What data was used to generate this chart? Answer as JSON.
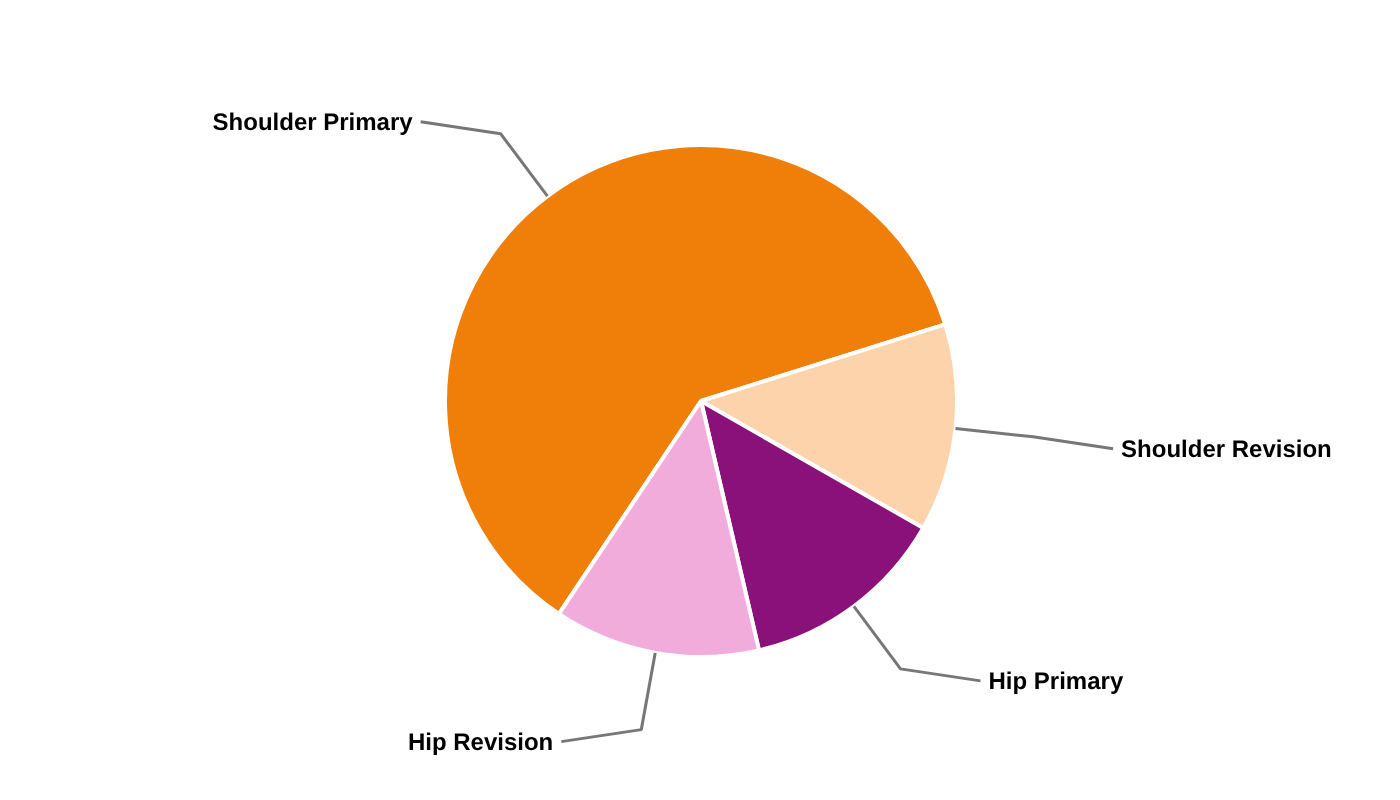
{
  "chart_data": {
    "type": "pie",
    "categories": [
      "Shoulder Primary",
      "Shoulder Revision",
      "Hip Primary",
      "Hip Revision"
    ],
    "values": [
      60.8,
      13.1,
      13.1,
      13.0
    ],
    "colors": [
      "#f07f09",
      "#fcd3ab",
      "#891179",
      "#f2acdb"
    ]
  }
}
